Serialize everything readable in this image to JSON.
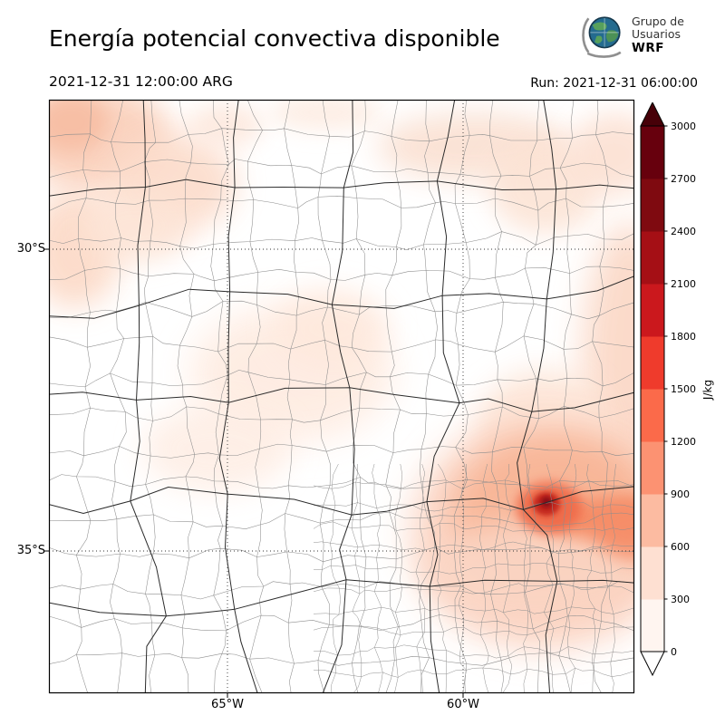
{
  "header": {
    "title": "Energía potencial convectiva disponible",
    "logo": {
      "line1": "Grupo de",
      "line2": "Usuarios",
      "line3": "WRF"
    }
  },
  "times": {
    "valid": "2021-12-31 12:00:00 ARG",
    "run": "Run: 2021-12-31 06:00:00"
  },
  "chart_data": {
    "type": "heatmap",
    "title": "Energía potencial convectiva disponible",
    "valid_time": "2021-12-31 12:00:00 ARG",
    "run_label": "Run: 2021-12-31 06:00:00",
    "units": "J/kg",
    "x_axis": {
      "ticks": [
        "65°W",
        "60°W"
      ]
    },
    "y_axis": {
      "ticks": [
        "30°S",
        "35°S"
      ]
    },
    "colorbar": {
      "label": "J/kg",
      "orientation": "vertical",
      "ticks": [
        0,
        300,
        600,
        900,
        1200,
        1500,
        1800,
        2100,
        2400,
        2700,
        3000
      ],
      "colors": [
        "#fff5f0",
        "#fee0d2",
        "#fcbba1",
        "#fc9272",
        "#fb6a4a",
        "#ef3b2c",
        "#cb181d",
        "#a50f15",
        "#7f0a10",
        "#67000d"
      ],
      "over_color": "#470008",
      "under_color": "#ffffff"
    },
    "regions": [
      {
        "area": "southeast hotspot near Río de la Plata / Buenos Aires coast",
        "cape_jkg_max": 2100
      },
      {
        "area": "plume extending east from hotspot to map edge",
        "cape_jkg": 900
      },
      {
        "area": "eastern map edge band",
        "cape_jkg": 400
      },
      {
        "area": "northwest patches",
        "cape_jkg": 250
      },
      {
        "area": "central scattered patches",
        "cape_jkg": 150
      },
      {
        "area": "most of domain",
        "cape_jkg": 0
      }
    ]
  }
}
